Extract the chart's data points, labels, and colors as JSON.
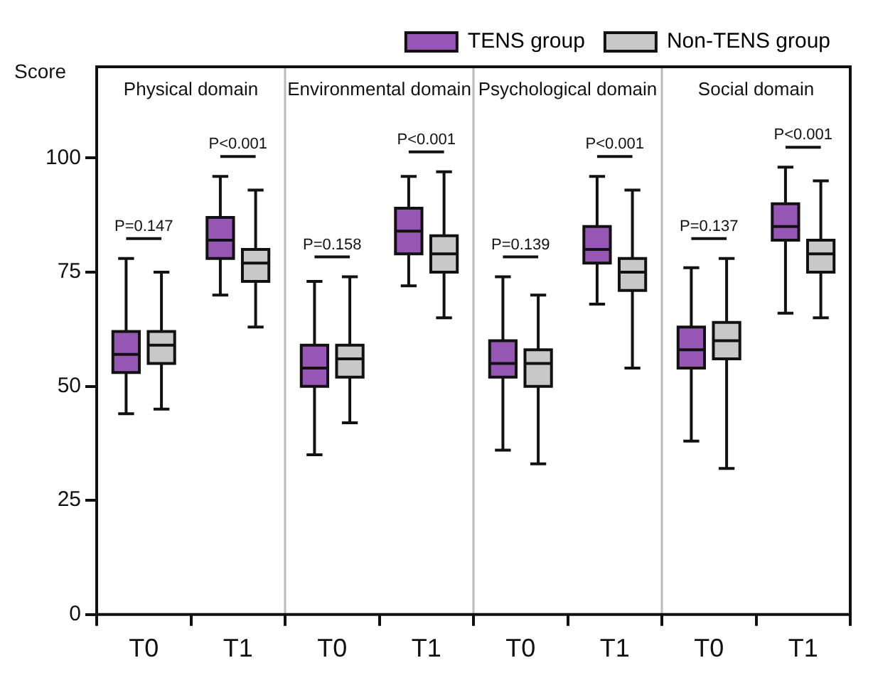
{
  "chart_data": {
    "type": "box",
    "ylabel": "Score",
    "legend": "top right",
    "categories": [
      "T0",
      "T1",
      "T0",
      "T1",
      "T0",
      "T1",
      "T0",
      "T1"
    ],
    "ylim": [
      0,
      120
    ],
    "yticks": [
      0,
      25,
      50,
      75,
      100
    ],
    "series": [
      {
        "name": "TENS group",
        "color": "#9656b4",
        "boxes": [
          {
            "low": 44,
            "q1": 53,
            "median": 57,
            "q3": 62,
            "high": 78
          },
          {
            "low": 70,
            "q1": 78,
            "median": 82,
            "q3": 87,
            "high": 96
          },
          {
            "low": 35,
            "q1": 50,
            "median": 54,
            "q3": 59,
            "high": 73
          },
          {
            "low": 72,
            "q1": 79,
            "median": 84,
            "q3": 89,
            "high": 96
          },
          {
            "low": 36,
            "q1": 52,
            "median": 55,
            "q3": 60,
            "high": 74
          },
          {
            "low": 68,
            "q1": 77,
            "median": 80,
            "q3": 85,
            "high": 96
          },
          {
            "low": 38,
            "q1": 54,
            "median": 58,
            "q3": 63,
            "high": 76
          },
          {
            "low": 66,
            "q1": 82,
            "median": 85,
            "q3": 90,
            "high": 98
          }
        ]
      },
      {
        "name": "Non-TENS group",
        "color": "#c8c8c8",
        "boxes": [
          {
            "low": 45,
            "q1": 55,
            "median": 59,
            "q3": 62,
            "high": 75
          },
          {
            "low": 63,
            "q1": 73,
            "median": 77,
            "q3": 80,
            "high": 93
          },
          {
            "low": 42,
            "q1": 52,
            "median": 56,
            "q3": 59,
            "high": 74
          },
          {
            "low": 65,
            "q1": 75,
            "median": 79,
            "q3": 83,
            "high": 97
          },
          {
            "low": 33,
            "q1": 50,
            "median": 55,
            "q3": 58,
            "high": 70
          },
          {
            "low": 54,
            "q1": 71,
            "median": 75,
            "q3": 78,
            "high": 93
          },
          {
            "low": 32,
            "q1": 56,
            "median": 60,
            "q3": 64,
            "high": 78
          },
          {
            "low": 65,
            "q1": 75,
            "median": 79,
            "q3": 82,
            "high": 95
          }
        ]
      }
    ],
    "annotations": [
      "Physical domain",
      "P=0.147",
      "P<0.001",
      "Environmental domain",
      "P=0.158",
      "P<0.001",
      "Psychological domain",
      "P=0.139",
      "P<0.001",
      "Social domain",
      "P=0.137",
      "P<0.001"
    ]
  }
}
